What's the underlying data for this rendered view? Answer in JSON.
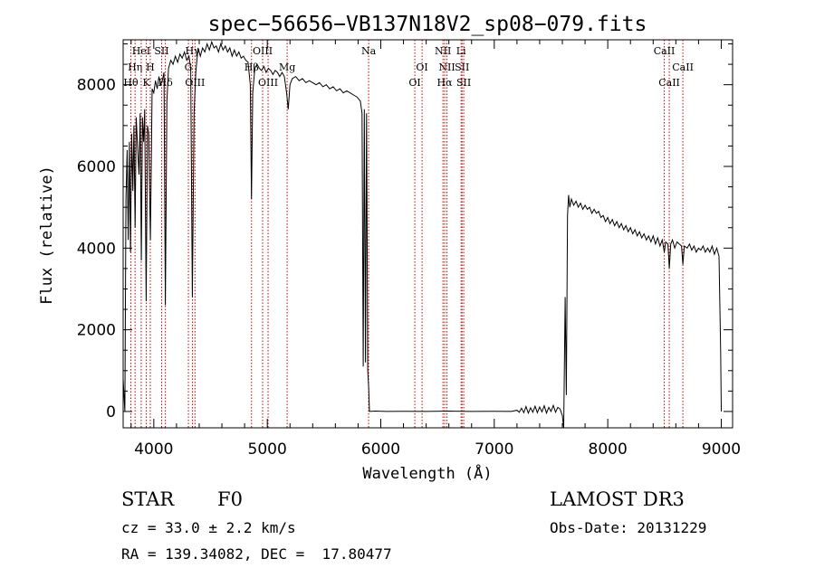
{
  "chart_data": {
    "type": "line",
    "title": "spec−56656−VB137N18V2_sp08−079.fits",
    "xlabel": "Wavelength (Å)",
    "ylabel": "Flux (relative)",
    "xlim": [
      3730,
      9100
    ],
    "ylim": [
      -400,
      9100
    ],
    "x_ticks": [
      4000,
      5000,
      6000,
      7000,
      8000,
      9000
    ],
    "y_ticks": [
      0,
      2000,
      4000,
      6000,
      8000
    ],
    "grid": false,
    "line_color": "#000000",
    "marker_color": "#cc0000",
    "series": [
      {
        "points": [
          [
            3730,
            800
          ],
          [
            3745,
            0
          ],
          [
            3755,
            5200
          ],
          [
            3765,
            6400
          ],
          [
            3775,
            4200
          ],
          [
            3785,
            6600
          ],
          [
            3795,
            3900
          ],
          [
            3805,
            6800
          ],
          [
            3815,
            5400
          ],
          [
            3825,
            7000
          ],
          [
            3835,
            4500
          ],
          [
            3845,
            7200
          ],
          [
            3860,
            6300
          ],
          [
            3870,
            5800
          ],
          [
            3880,
            7300
          ],
          [
            3890,
            3700
          ],
          [
            3900,
            7200
          ],
          [
            3910,
            6600
          ],
          [
            3920,
            7400
          ],
          [
            3933,
            2700
          ],
          [
            3945,
            7000
          ],
          [
            3955,
            6800
          ],
          [
            3970,
            4200
          ],
          [
            3985,
            7900
          ],
          [
            4000,
            7800
          ],
          [
            4015,
            8100
          ],
          [
            4030,
            7900
          ],
          [
            4045,
            8200
          ],
          [
            4060,
            8000
          ],
          [
            4075,
            8100
          ],
          [
            4090,
            8300
          ],
          [
            4102,
            2600
          ],
          [
            4115,
            7600
          ],
          [
            4130,
            8400
          ],
          [
            4150,
            8600
          ],
          [
            4170,
            8500
          ],
          [
            4190,
            8700
          ],
          [
            4210,
            8550
          ],
          [
            4230,
            8750
          ],
          [
            4250,
            8650
          ],
          [
            4270,
            8800
          ],
          [
            4290,
            8600
          ],
          [
            4310,
            8700
          ],
          [
            4325,
            8400
          ],
          [
            4340,
            2800
          ],
          [
            4355,
            7300
          ],
          [
            4370,
            8300
          ],
          [
            4390,
            8900
          ],
          [
            4410,
            8700
          ],
          [
            4430,
            8900
          ],
          [
            4450,
            8800
          ],
          [
            4470,
            9000
          ],
          [
            4490,
            8850
          ],
          [
            4510,
            9050
          ],
          [
            4530,
            8900
          ],
          [
            4550,
            8950
          ],
          [
            4570,
            8800
          ],
          [
            4590,
            9000
          ],
          [
            4610,
            8850
          ],
          [
            4630,
            8950
          ],
          [
            4650,
            8800
          ],
          [
            4670,
            8900
          ],
          [
            4690,
            8700
          ],
          [
            4710,
            8850
          ],
          [
            4730,
            8700
          ],
          [
            4750,
            8800
          ],
          [
            4770,
            8650
          ],
          [
            4790,
            8700
          ],
          [
            4810,
            8600
          ],
          [
            4830,
            8550
          ],
          [
            4850,
            8000
          ],
          [
            4861,
            5200
          ],
          [
            4872,
            7800
          ],
          [
            4890,
            8400
          ],
          [
            4910,
            8500
          ],
          [
            4930,
            8400
          ],
          [
            4950,
            8350
          ],
          [
            4970,
            8450
          ],
          [
            4990,
            8300
          ],
          [
            5010,
            8400
          ],
          [
            5030,
            8350
          ],
          [
            5050,
            8250
          ],
          [
            5070,
            8350
          ],
          [
            5090,
            8300
          ],
          [
            5110,
            8200
          ],
          [
            5130,
            8300
          ],
          [
            5150,
            8200
          ],
          [
            5170,
            7800
          ],
          [
            5185,
            7400
          ],
          [
            5200,
            8000
          ],
          [
            5220,
            8150
          ],
          [
            5250,
            8200
          ],
          [
            5280,
            8100
          ],
          [
            5310,
            8150
          ],
          [
            5340,
            8050
          ],
          [
            5370,
            8100
          ],
          [
            5400,
            8050
          ],
          [
            5430,
            8000
          ],
          [
            5460,
            8050
          ],
          [
            5490,
            7950
          ],
          [
            5520,
            8000
          ],
          [
            5550,
            7900
          ],
          [
            5580,
            7950
          ],
          [
            5610,
            7850
          ],
          [
            5640,
            7900
          ],
          [
            5670,
            7800
          ],
          [
            5700,
            7850
          ],
          [
            5730,
            7800
          ],
          [
            5760,
            7750
          ],
          [
            5790,
            7700
          ],
          [
            5820,
            7600
          ],
          [
            5835,
            7300
          ],
          [
            5845,
            1100
          ],
          [
            5855,
            7400
          ],
          [
            5865,
            1200
          ],
          [
            5875,
            7300
          ],
          [
            5885,
            1000
          ],
          [
            5893,
            600
          ],
          [
            5900,
            0
          ],
          [
            5950,
            10
          ],
          [
            6050,
            0
          ],
          [
            6200,
            5
          ],
          [
            6400,
            0
          ],
          [
            6600,
            10
          ],
          [
            6800,
            0
          ],
          [
            7000,
            5
          ],
          [
            7150,
            0
          ],
          [
            7200,
            30
          ],
          [
            7220,
            -20
          ],
          [
            7240,
            80
          ],
          [
            7260,
            -30
          ],
          [
            7280,
            120
          ],
          [
            7300,
            -40
          ],
          [
            7320,
            90
          ],
          [
            7340,
            -20
          ],
          [
            7360,
            130
          ],
          [
            7380,
            -30
          ],
          [
            7400,
            110
          ],
          [
            7420,
            -10
          ],
          [
            7440,
            140
          ],
          [
            7460,
            -40
          ],
          [
            7480,
            100
          ],
          [
            7500,
            0
          ],
          [
            7520,
            150
          ],
          [
            7540,
            -20
          ],
          [
            7560,
            100
          ],
          [
            7580,
            60
          ],
          [
            7600,
            -100
          ],
          [
            7612,
            -400
          ],
          [
            7625,
            2800
          ],
          [
            7635,
            400
          ],
          [
            7645,
            4800
          ],
          [
            7655,
            5300
          ],
          [
            7665,
            5000
          ],
          [
            7680,
            5200
          ],
          [
            7700,
            5050
          ],
          [
            7720,
            5150
          ],
          [
            7740,
            5000
          ],
          [
            7760,
            5100
          ],
          [
            7780,
            4950
          ],
          [
            7800,
            5050
          ],
          [
            7820,
            4950
          ],
          [
            7840,
            5000
          ],
          [
            7860,
            4850
          ],
          [
            7880,
            4950
          ],
          [
            7900,
            4850
          ],
          [
            7920,
            4900
          ],
          [
            7940,
            4750
          ],
          [
            7960,
            4800
          ],
          [
            7980,
            4650
          ],
          [
            8000,
            4750
          ],
          [
            8020,
            4600
          ],
          [
            8040,
            4700
          ],
          [
            8060,
            4550
          ],
          [
            8080,
            4650
          ],
          [
            8100,
            4500
          ],
          [
            8120,
            4600
          ],
          [
            8140,
            4450
          ],
          [
            8160,
            4550
          ],
          [
            8180,
            4400
          ],
          [
            8200,
            4500
          ],
          [
            8220,
            4350
          ],
          [
            8240,
            4450
          ],
          [
            8260,
            4300
          ],
          [
            8280,
            4400
          ],
          [
            8300,
            4250
          ],
          [
            8320,
            4350
          ],
          [
            8340,
            4200
          ],
          [
            8360,
            4300
          ],
          [
            8380,
            4150
          ],
          [
            8400,
            4300
          ],
          [
            8420,
            4100
          ],
          [
            8440,
            4250
          ],
          [
            8460,
            4050
          ],
          [
            8480,
            4200
          ],
          [
            8498,
            3900
          ],
          [
            8510,
            4150
          ],
          [
            8530,
            4100
          ],
          [
            8542,
            3500
          ],
          [
            8555,
            4100
          ],
          [
            8570,
            4200
          ],
          [
            8590,
            4000
          ],
          [
            8610,
            4150
          ],
          [
            8630,
            4100
          ],
          [
            8650,
            4050
          ],
          [
            8662,
            3600
          ],
          [
            8675,
            4050
          ],
          [
            8700,
            4000
          ],
          [
            8720,
            4100
          ],
          [
            8740,
            3950
          ],
          [
            8760,
            4050
          ],
          [
            8780,
            3900
          ],
          [
            8800,
            4000
          ],
          [
            8820,
            3950
          ],
          [
            8840,
            4050
          ],
          [
            8860,
            3900
          ],
          [
            8880,
            4000
          ],
          [
            8900,
            3900
          ],
          [
            8920,
            4050
          ],
          [
            8940,
            3850
          ],
          [
            8960,
            4000
          ],
          [
            8980,
            3800
          ],
          [
            8995,
            1500
          ],
          [
            9000,
            0
          ]
        ]
      }
    ],
    "lines": [
      {
        "name": "Hθ",
        "x": 3798,
        "row": 3
      },
      {
        "name": "Hη",
        "x": 3835,
        "row": 2
      },
      {
        "name": "HeI",
        "x": 3889,
        "row": 1
      },
      {
        "name": "K",
        "x": 3934,
        "row": 3
      },
      {
        "name": "H",
        "x": 3969,
        "row": 2
      },
      {
        "name": "SII",
        "x": 4069,
        "row": 1
      },
      {
        "name": "Hδ",
        "x": 4102,
        "row": 3
      },
      {
        "name": "Hγ",
        "x": 4341,
        "row": 1
      },
      {
        "name": "G",
        "x": 4305,
        "row": 2
      },
      {
        "name": "OIII",
        "x": 4363,
        "row": 3
      },
      {
        "name": "Hβ",
        "x": 4861,
        "row": 2
      },
      {
        "name": "OIII",
        "x": 4959,
        "row": 1
      },
      {
        "name": "OIII",
        "x": 5007,
        "row": 3
      },
      {
        "name": "Mg",
        "x": 5175,
        "row": 2
      },
      {
        "name": "Na",
        "x": 5893,
        "row": 1
      },
      {
        "name": "OI",
        "x": 6300,
        "row": 3
      },
      {
        "name": "OI",
        "x": 6364,
        "row": 2
      },
      {
        "name": "NII",
        "x": 6548,
        "row": 1
      },
      {
        "name": "Hα",
        "x": 6563,
        "row": 3
      },
      {
        "name": "NII",
        "x": 6583,
        "row": 2
      },
      {
        "name": "Li",
        "x": 6708,
        "row": 1
      },
      {
        "name": "SII",
        "x": 6716,
        "row": 2
      },
      {
        "name": "SII",
        "x": 6731,
        "row": 3
      },
      {
        "name": "CaII",
        "x": 8498,
        "row": 1
      },
      {
        "name": "CaII",
        "x": 8542,
        "row": 3
      },
      {
        "name": "CaII",
        "x": 8662,
        "row": 2
      }
    ]
  },
  "info": {
    "object_class": "STAR",
    "subclass": "F0",
    "redshift": "cz = 33.0 ± 2.2 km/s",
    "coords": "RA = 139.34082, DEC =  17.80477",
    "survey": "LAMOST DR3",
    "obs_date": "Obs-Date: 20131229"
  }
}
